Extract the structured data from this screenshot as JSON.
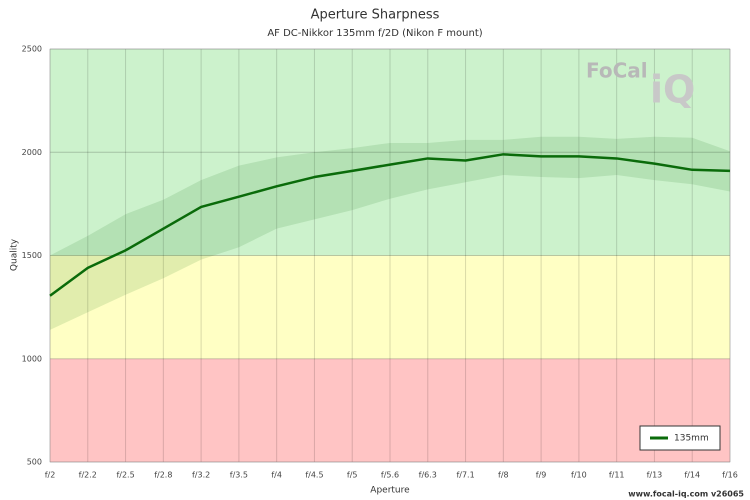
{
  "chart_data": {
    "type": "line",
    "title": "Aperture Sharpness",
    "subtitle": "AF DC-Nikkor 135mm f/2D (Nikon F mount)",
    "x_label": "Aperture",
    "y_label": "Quality",
    "categories": [
      "f/2",
      "f/2.2",
      "f/2.5",
      "f/2.8",
      "f/3.2",
      "f/3.5",
      "f/4",
      "f/4.5",
      "f/5",
      "f/5.6",
      "f/6.3",
      "f/7.1",
      "f/8",
      "f/9",
      "f/10",
      "f/11",
      "f/13",
      "f/14",
      "f/16"
    ],
    "series": [
      {
        "name": "135mm",
        "color": "#0a6b0a",
        "values": [
          1305,
          1440,
          1525,
          1630,
          1735,
          1785,
          1835,
          1880,
          1910,
          1940,
          1970,
          1960,
          1990,
          1980,
          1980,
          1970,
          1945,
          1915,
          1910
        ],
        "band_upper": [
          1500,
          1595,
          1700,
          1770,
          1865,
          1935,
          1975,
          2000,
          2020,
          2045,
          2045,
          2060,
          2060,
          2075,
          2075,
          2065,
          2075,
          2070,
          2005
        ],
        "band_lower": [
          1140,
          1225,
          1310,
          1390,
          1480,
          1540,
          1630,
          1675,
          1720,
          1775,
          1820,
          1855,
          1890,
          1880,
          1875,
          1890,
          1865,
          1845,
          1810
        ]
      }
    ],
    "ylim": [
      500,
      2500
    ],
    "yticks": [
      500,
      1000,
      1500,
      2000,
      2500
    ],
    "grid": true,
    "zones": [
      {
        "from": 500,
        "to": 1000,
        "color": "#ffc4c4"
      },
      {
        "from": 1000,
        "to": 1500,
        "color": "#ffffc4"
      },
      {
        "from": 1500,
        "to": 2500,
        "color": "#ccf2cc"
      }
    ],
    "legend": "bottom-right",
    "logo_text": "FoCal",
    "logo_mark": "iQ",
    "footer": "www.focal-iq.com  v26065"
  }
}
